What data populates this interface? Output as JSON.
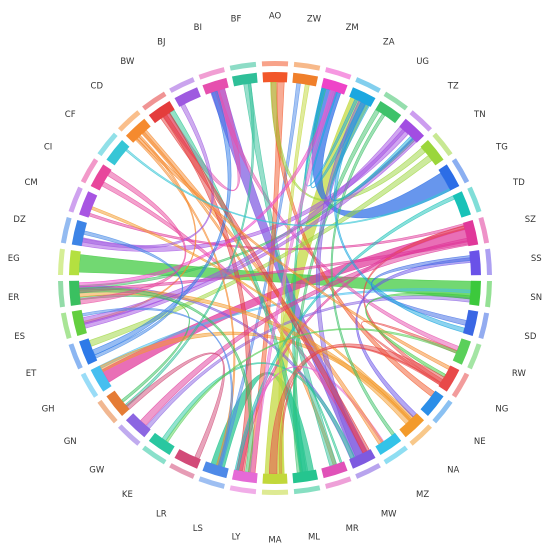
{
  "chart_data": {
    "type": "chord",
    "title": "",
    "countries": [
      {
        "code": "AO",
        "color": "#f2572a"
      },
      {
        "code": "ZW",
        "color": "#f07f2a"
      },
      {
        "code": "ZM",
        "color": "#ee44c8"
      },
      {
        "code": "ZA",
        "color": "#1ba7e0"
      },
      {
        "code": "UG",
        "color": "#3ec26a"
      },
      {
        "code": "TZ",
        "color": "#a24de2"
      },
      {
        "code": "TN",
        "color": "#9bd63b"
      },
      {
        "code": "TG",
        "color": "#2c6de6"
      },
      {
        "code": "TD",
        "color": "#18c2b8"
      },
      {
        "code": "SZ",
        "color": "#e0389a"
      },
      {
        "code": "SS",
        "color": "#6a52e8"
      },
      {
        "code": "SN",
        "color": "#3cc93c"
      },
      {
        "code": "SD",
        "color": "#3a67e4"
      },
      {
        "code": "RW",
        "color": "#5ad05a"
      },
      {
        "code": "NG",
        "color": "#e84a4a"
      },
      {
        "code": "NE",
        "color": "#2b8ee8"
      },
      {
        "code": "NA",
        "color": "#f39a2a"
      },
      {
        "code": "MZ",
        "color": "#33c3e8"
      },
      {
        "code": "MW",
        "color": "#7e5ae0"
      },
      {
        "code": "MR",
        "color": "#e052b8"
      },
      {
        "code": "ML",
        "color": "#25c58f"
      },
      {
        "code": "MA",
        "color": "#c2d83a"
      },
      {
        "code": "LY",
        "color": "#e56ad6"
      },
      {
        "code": "LS",
        "color": "#4e8ae8"
      },
      {
        "code": "LR",
        "color": "#d24a78"
      },
      {
        "code": "KE",
        "color": "#2ac7a0"
      },
      {
        "code": "GW",
        "color": "#8c66e2"
      },
      {
        "code": "GN",
        "color": "#e57c36"
      },
      {
        "code": "GH",
        "color": "#46bff0"
      },
      {
        "code": "ET",
        "color": "#2e7ae8"
      },
      {
        "code": "ES",
        "color": "#63cf3f"
      },
      {
        "code": "ER",
        "color": "#3ac060"
      },
      {
        "code": "EG",
        "color": "#b4e040"
      },
      {
        "code": "DZ",
        "color": "#3d84e6"
      },
      {
        "code": "CM",
        "color": "#a855e2"
      },
      {
        "code": "CI",
        "color": "#e8469c"
      },
      {
        "code": "CF",
        "color": "#36c6d6"
      },
      {
        "code": "CD",
        "color": "#f58a2e"
      },
      {
        "code": "BW",
        "color": "#e43c3c"
      },
      {
        "code": "BJ",
        "color": "#9e5ae0"
      },
      {
        "code": "BI",
        "color": "#e64fae"
      },
      {
        "code": "BF",
        "color": "#2fbf98"
      }
    ]
  }
}
